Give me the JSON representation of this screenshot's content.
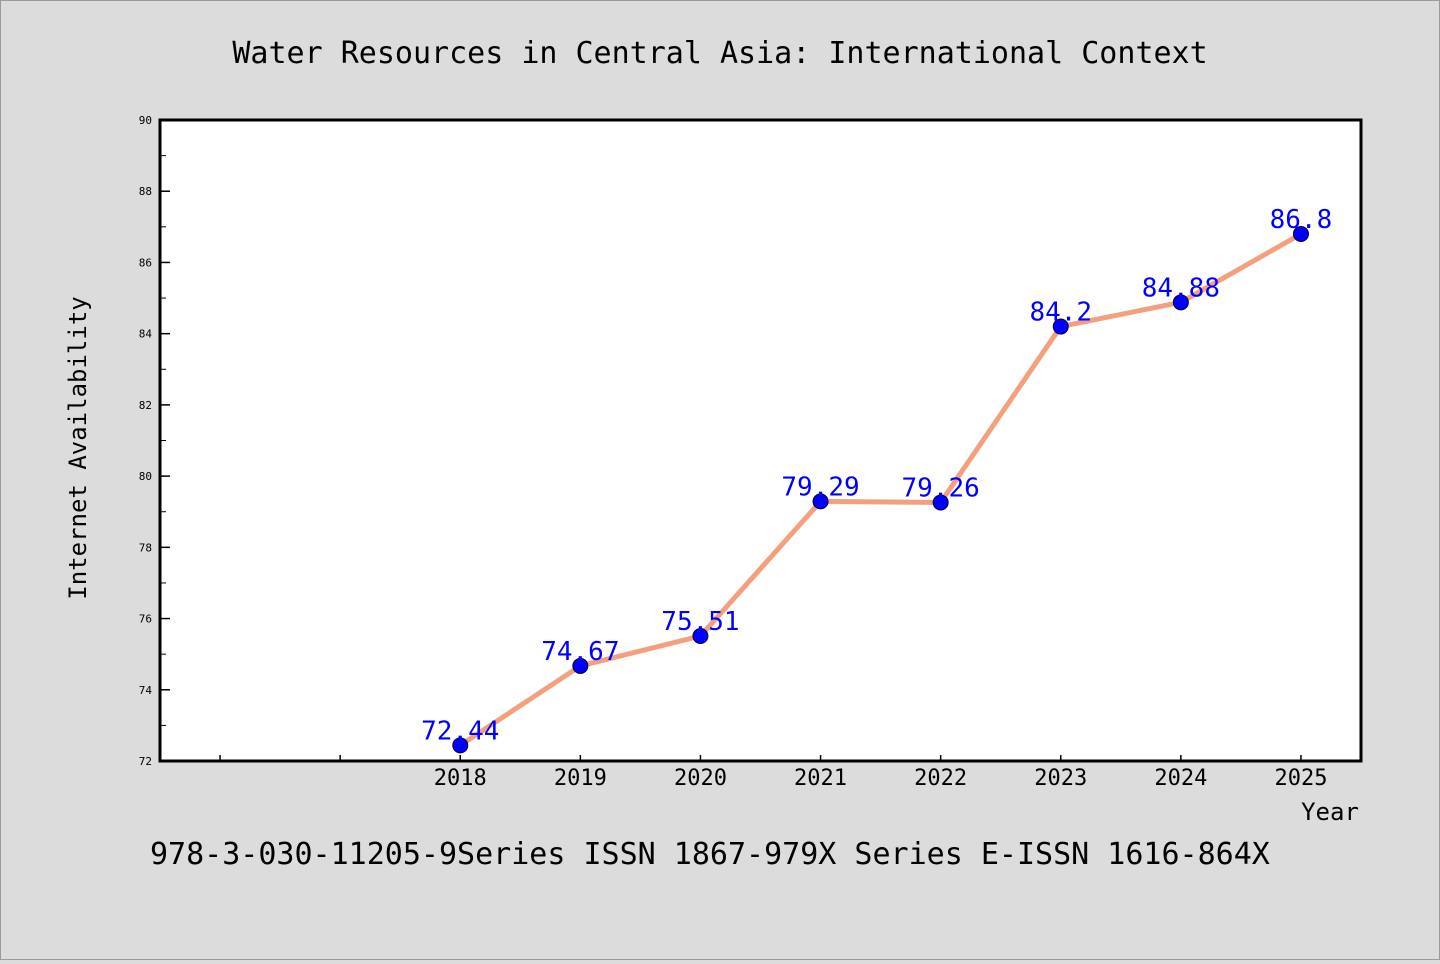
{
  "chart_data": {
    "type": "line",
    "title": "Water Resources in Central Asia: International Context",
    "xlabel": "Year",
    "ylabel": "Internet Availability",
    "footer": "978-3-030-11205-9Series ISSN 1867-979X Series E-ISSN 1616-864X",
    "categories": [
      "2018",
      "2019",
      "2020",
      "2021",
      "2022",
      "2023",
      "2024",
      "2025"
    ],
    "series": [
      {
        "values": [
          72.44,
          74.67,
          75.51,
          79.29,
          79.26,
          84.2,
          84.88,
          86.8
        ],
        "labels": [
          "72.44",
          "74.67",
          "75.51",
          "79.29",
          "79.26",
          "84.2",
          "84.88",
          "86.8"
        ]
      }
    ],
    "ylim": [
      72,
      90
    ],
    "yticks": [
      72,
      74,
      76,
      78,
      80,
      82,
      84,
      86,
      88,
      90
    ],
    "ytick_labels": [
      "72",
      "74",
      "76",
      "78",
      "80",
      "82",
      "84",
      "86",
      "88",
      "90"
    ],
    "x_slots": 10,
    "first_category_slot": 2,
    "grid": false,
    "legend": "none",
    "colors": {
      "background": "#dcdcdc",
      "plot_background": "#ffffff",
      "line": "#f4a07e",
      "marker": "#0000ff",
      "data_label": "#0000ff",
      "text": "#000000"
    }
  }
}
